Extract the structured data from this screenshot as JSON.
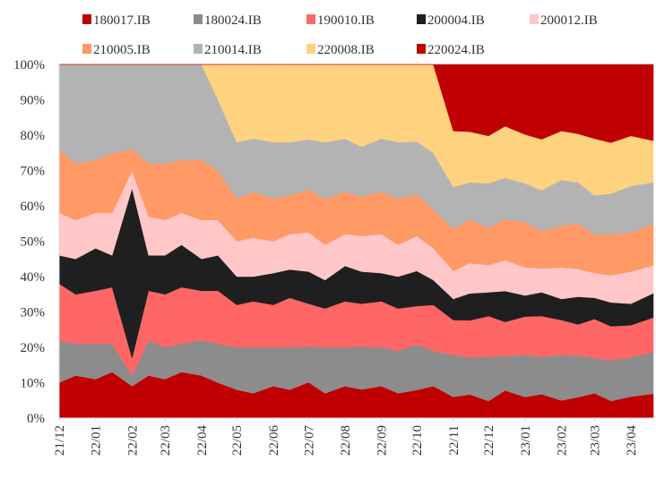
{
  "chart_data": {
    "type": "area",
    "stacked": true,
    "normalized_percent": true,
    "title": "",
    "xlabel": "",
    "ylabel": "",
    "ylim": [
      0,
      100
    ],
    "yticks": [
      "0%",
      "10%",
      "20%",
      "30%",
      "40%",
      "50%",
      "60%",
      "70%",
      "80%",
      "90%",
      "100%"
    ],
    "xticks": [
      "21/12",
      "22/01",
      "22/02",
      "22/03",
      "22/04",
      "22/05",
      "22/06",
      "22/07",
      "22/08",
      "22/09",
      "22/10",
      "22/11",
      "22/12",
      "23/01",
      "23/02",
      "23/03",
      "23/04"
    ],
    "xtick_dates": [
      "2021-12-01",
      "2022-01-01",
      "2022-02-01",
      "2022-03-01",
      "2022-04-01",
      "2022-05-01",
      "2022-06-01",
      "2022-07-01",
      "2022-08-01",
      "2022-09-01",
      "2022-10-01",
      "2022-11-01",
      "2022-12-01",
      "2023-01-01",
      "2023-02-01",
      "2023-03-01",
      "2023-04-01"
    ],
    "x_range": [
      "2021-12-01",
      "2023-04-20"
    ],
    "legend_position": "top",
    "x": [
      "2021-12-01",
      "2021-12-15",
      "2022-01-01",
      "2022-01-15",
      "2022-02-01",
      "2022-02-15",
      "2022-03-01",
      "2022-03-15",
      "2022-04-01",
      "2022-04-15",
      "2022-05-01",
      "2022-05-15",
      "2022-06-01",
      "2022-06-15",
      "2022-07-01",
      "2022-07-15",
      "2022-08-01",
      "2022-08-15",
      "2022-09-01",
      "2022-09-15",
      "2022-10-01",
      "2022-10-15",
      "2022-11-01",
      "2022-11-15",
      "2022-12-01",
      "2022-12-15",
      "2023-01-01",
      "2023-01-15",
      "2023-02-01",
      "2023-02-15",
      "2023-03-01",
      "2023-03-15",
      "2023-04-01",
      "2023-04-15"
    ],
    "series": [
      {
        "name": "180017.IB",
        "color": "#C00000",
        "values": [
          10,
          12,
          11,
          13,
          9,
          12,
          11,
          13,
          12,
          10,
          8,
          7,
          9,
          8,
          10,
          7,
          9,
          8,
          9,
          7,
          8,
          9,
          6,
          7,
          5,
          8,
          6,
          7,
          5,
          6,
          7,
          5,
          6,
          7
        ]
      },
      {
        "name": "180024.IB",
        "color": "#8C8C8C",
        "values": [
          12,
          9,
          10,
          8,
          3,
          10,
          9,
          8,
          10,
          11,
          12,
          13,
          11,
          12,
          10,
          13,
          11,
          12,
          11,
          12,
          13,
          10,
          12,
          11,
          13,
          10,
          12,
          11,
          13,
          12,
          10,
          12,
          11,
          12
        ]
      },
      {
        "name": "190010.IB",
        "color": "#FF6666",
        "values": [
          16,
          14,
          15,
          16,
          5,
          14,
          15,
          16,
          14,
          15,
          12,
          13,
          12,
          14,
          12,
          11,
          13,
          12,
          13,
          12,
          11,
          13,
          10,
          11,
          12,
          10,
          11,
          12,
          10,
          9,
          11,
          10,
          9,
          10
        ]
      },
      {
        "name": "200004.IB",
        "color": "#1F1F1F",
        "values": [
          8,
          10,
          12,
          9,
          48,
          10,
          11,
          12,
          9,
          10,
          8,
          7,
          9,
          8,
          9,
          8,
          10,
          9,
          8,
          9,
          10,
          7,
          6,
          8,
          7,
          9,
          6,
          7,
          6,
          8,
          6,
          7,
          6,
          7
        ]
      },
      {
        "name": "200012.IB",
        "color": "#FFC7C7",
        "values": [
          12,
          11,
          10,
          12,
          5,
          11,
          10,
          9,
          11,
          10,
          10,
          11,
          9,
          10,
          11,
          10,
          9,
          10,
          11,
          9,
          10,
          9,
          8,
          9,
          8,
          9,
          8,
          7,
          9,
          8,
          7,
          8,
          9,
          8
        ]
      },
      {
        "name": "210005.IB",
        "color": "#FF9966",
        "values": [
          18,
          16,
          15,
          17,
          6,
          15,
          16,
          15,
          17,
          14,
          12,
          13,
          12,
          11,
          12,
          13,
          12,
          11,
          12,
          13,
          12,
          11,
          12,
          13,
          11,
          12,
          13,
          11,
          12,
          13,
          11,
          12,
          11,
          12
        ]
      },
      {
        "name": "210014.IB",
        "color": "#B3B3B3",
        "values": [
          24,
          28,
          27,
          25,
          24,
          28,
          28,
          27,
          27,
          20,
          16,
          15,
          16,
          15,
          14,
          16,
          15,
          14,
          15,
          16,
          15,
          16,
          12,
          11,
          13,
          12,
          11,
          12,
          13,
          12,
          11,
          12,
          13,
          12
        ]
      },
      {
        "name": "220008.IB",
        "color": "#FFD280",
        "values": [
          0,
          0,
          0,
          0,
          0,
          0,
          0,
          0,
          0,
          10,
          22,
          21,
          22,
          22,
          21,
          22,
          21,
          23,
          21,
          22,
          22,
          25,
          16,
          15,
          14,
          15,
          14,
          15,
          14,
          14,
          16,
          15,
          14,
          12
        ]
      },
      {
        "name": "220024.IB",
        "color": "#C00000",
        "values": [
          0,
          0,
          0,
          0,
          0,
          0,
          0,
          0,
          0,
          0,
          0,
          0,
          0,
          0,
          0,
          0,
          0,
          0,
          0,
          0,
          0,
          0,
          19,
          20,
          21,
          18,
          20,
          22,
          19,
          20,
          21,
          23,
          20,
          22
        ]
      }
    ]
  }
}
